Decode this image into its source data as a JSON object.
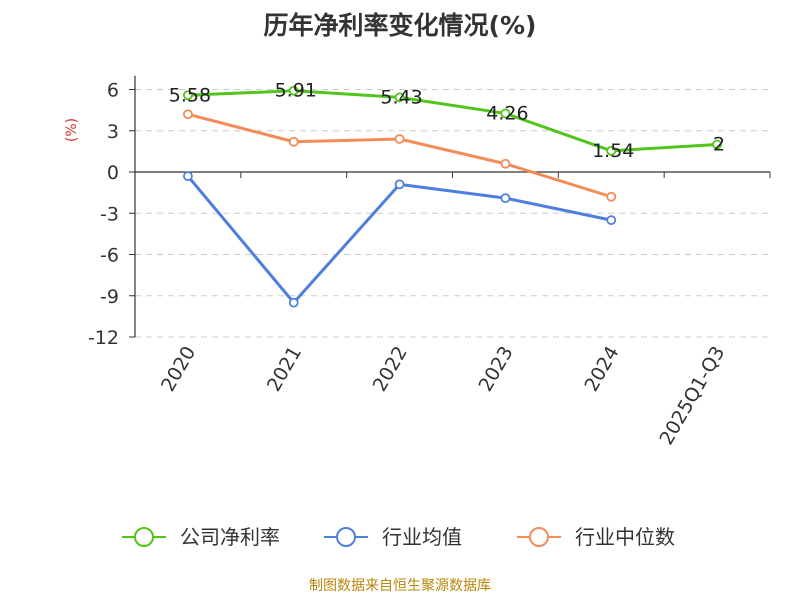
{
  "chart_data": {
    "type": "line",
    "title": "历年净利率变化情况(%)",
    "ylabel": "(%)",
    "xlabel": "",
    "categories": [
      "2020",
      "2021",
      "2022",
      "2023",
      "2024",
      "2025Q1-Q3"
    ],
    "yticks": [
      6,
      3,
      0,
      -3,
      -6,
      -9,
      -12
    ],
    "ylim": [
      -12,
      7
    ],
    "grid": true,
    "legend_position": "bottom",
    "series": [
      {
        "name": "公司净利率",
        "color": "#52c41a",
        "values": [
          5.58,
          5.91,
          5.43,
          4.26,
          1.54,
          2
        ],
        "show_labels": true
      },
      {
        "name": "行业均值",
        "color": "#4f7fde",
        "values": [
          -0.3,
          -9.5,
          -0.9,
          -1.9,
          -3.5,
          null
        ],
        "show_labels": false
      },
      {
        "name": "行业中位数",
        "color": "#f48c5a",
        "values": [
          4.2,
          2.2,
          2.4,
          0.6,
          -1.8,
          null
        ],
        "show_labels": false
      }
    ]
  },
  "source": "制图数据来自恒生聚源数据库"
}
